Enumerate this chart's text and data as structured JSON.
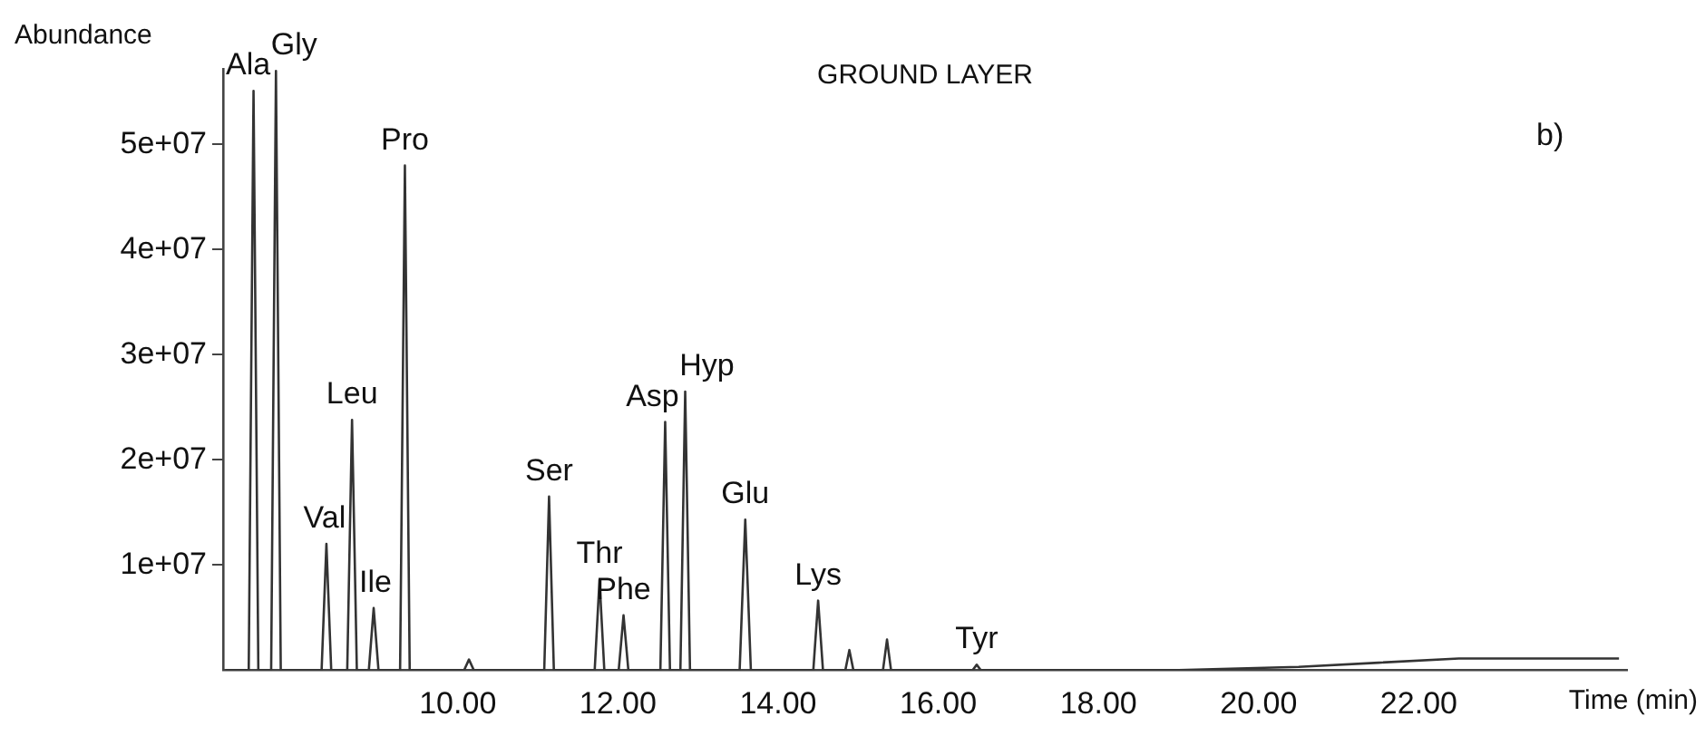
{
  "chart_data": {
    "type": "line",
    "title": "GROUND LAYER",
    "xlabel": "Time (min)",
    "ylabel": "Abundance",
    "color": "#333333",
    "grid": false,
    "legend": false,
    "marker": "none",
    "annotations": [
      "b)",
      {
        "text": "Ala",
        "x": 7.45,
        "y": 55100000
      },
      {
        "text": "Gly",
        "x": 7.73,
        "y": 57000000
      },
      {
        "text": "Val",
        "x": 8.36,
        "y": 12000000
      },
      {
        "text": "Leu",
        "x": 8.68,
        "y": 23800000
      },
      {
        "text": "Ile",
        "x": 8.95,
        "y": 5900000
      },
      {
        "text": "Pro",
        "x": 9.34,
        "y": 48000000
      },
      {
        "text": "Ser",
        "x": 11.14,
        "y": 16500000
      },
      {
        "text": "Thr",
        "x": 11.77,
        "y": 8600000
      },
      {
        "text": "Phe",
        "x": 12.07,
        "y": 5200000
      },
      {
        "text": "Asp",
        "x": 12.59,
        "y": 23600000
      },
      {
        "text": "Hyp",
        "x": 12.84,
        "y": 26500000
      },
      {
        "text": "Glu",
        "x": 13.59,
        "y": 14300000
      },
      {
        "text": "Lys",
        "x": 14.5,
        "y": 6600000
      },
      {
        "text": "Tyr",
        "x": 16.48,
        "y": 500000
      }
    ],
    "x": [
      7.1,
      7.39,
      7.45,
      7.51,
      7.67,
      7.73,
      7.79,
      8.3,
      8.36,
      8.42,
      8.62,
      8.68,
      8.74,
      8.89,
      8.95,
      9.01,
      9.28,
      9.34,
      9.4,
      10.08,
      10.14,
      10.2,
      11.08,
      11.14,
      11.2,
      11.71,
      11.77,
      11.83,
      12.01,
      12.07,
      12.13,
      12.53,
      12.59,
      12.65,
      12.78,
      12.84,
      12.9,
      13.52,
      13.59,
      13.66,
      14.44,
      14.5,
      14.56,
      14.84,
      14.89,
      14.94,
      15.31,
      15.36,
      15.41,
      16.43,
      16.48,
      16.53,
      19.0,
      20.5,
      21.5,
      22.5,
      24.5
    ],
    "values": [
      0,
      0,
      55100000,
      0,
      0,
      57000000,
      0,
      0,
      12000000,
      0,
      0,
      23800000,
      0,
      0,
      5900000,
      0,
      0,
      48000000,
      0,
      0,
      1000000,
      0,
      0,
      16500000,
      0,
      0,
      8600000,
      0,
      0,
      5200000,
      0,
      0,
      23600000,
      0,
      0,
      26500000,
      0,
      0,
      14300000,
      0,
      0,
      6600000,
      0,
      0,
      1900000,
      0,
      0,
      2900000,
      0,
      0,
      500000,
      0,
      0,
      300000,
      700000,
      1100000,
      1100000
    ],
    "xlim": [
      7.07,
      24.6
    ],
    "ylim": [
      0,
      57200000
    ],
    "xticks": [
      {
        "value": 10,
        "label": "10.00"
      },
      {
        "value": 12,
        "label": "12.00"
      },
      {
        "value": 14,
        "label": "14.00"
      },
      {
        "value": 16,
        "label": "16.00"
      },
      {
        "value": 18,
        "label": "18.00"
      },
      {
        "value": 20,
        "label": "20.00"
      },
      {
        "value": 22,
        "label": "22.00"
      }
    ],
    "yticks": [
      {
        "value": 10000000,
        "label": "1e+07"
      },
      {
        "value": 20000000,
        "label": "2e+07"
      },
      {
        "value": 30000000,
        "label": "3e+07"
      },
      {
        "value": 40000000,
        "label": "4e+07"
      },
      {
        "value": 50000000,
        "label": "5e+07"
      }
    ]
  }
}
